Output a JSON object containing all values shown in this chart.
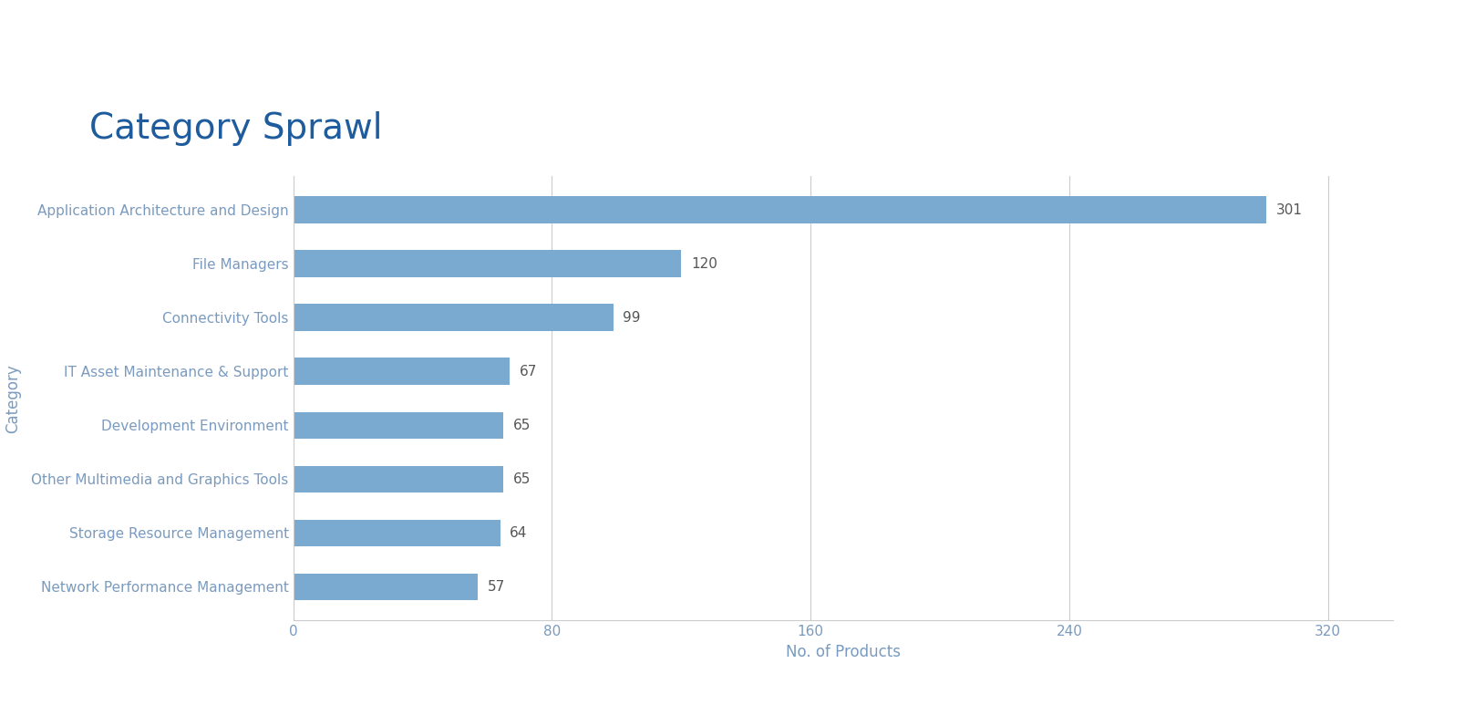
{
  "title": "Category Sprawl",
  "categories": [
    "Network Performance Management",
    "Storage Resource Management",
    "Other Multimedia and Graphics Tools",
    "Development Environment",
    "IT Asset Maintenance & Support",
    "Connectivity Tools",
    "File Managers",
    "Application Architecture and Design"
  ],
  "values": [
    57,
    64,
    65,
    65,
    67,
    99,
    120,
    301
  ],
  "bar_color": "#7aaacf",
  "xlabel": "No. of Products",
  "ylabel": "Category",
  "xlim": [
    0,
    340
  ],
  "xticks": [
    0,
    80,
    160,
    240,
    320
  ],
  "background_color": "#ffffff",
  "title_color": "#1f5c9e",
  "label_color": "#7a9bbf",
  "axis_color": "#cccccc",
  "value_label_color": "#555555",
  "title_fontsize": 28,
  "label_fontsize": 12,
  "tick_fontsize": 11,
  "ylabel_fontsize": 12,
  "value_label_fontsize": 11
}
